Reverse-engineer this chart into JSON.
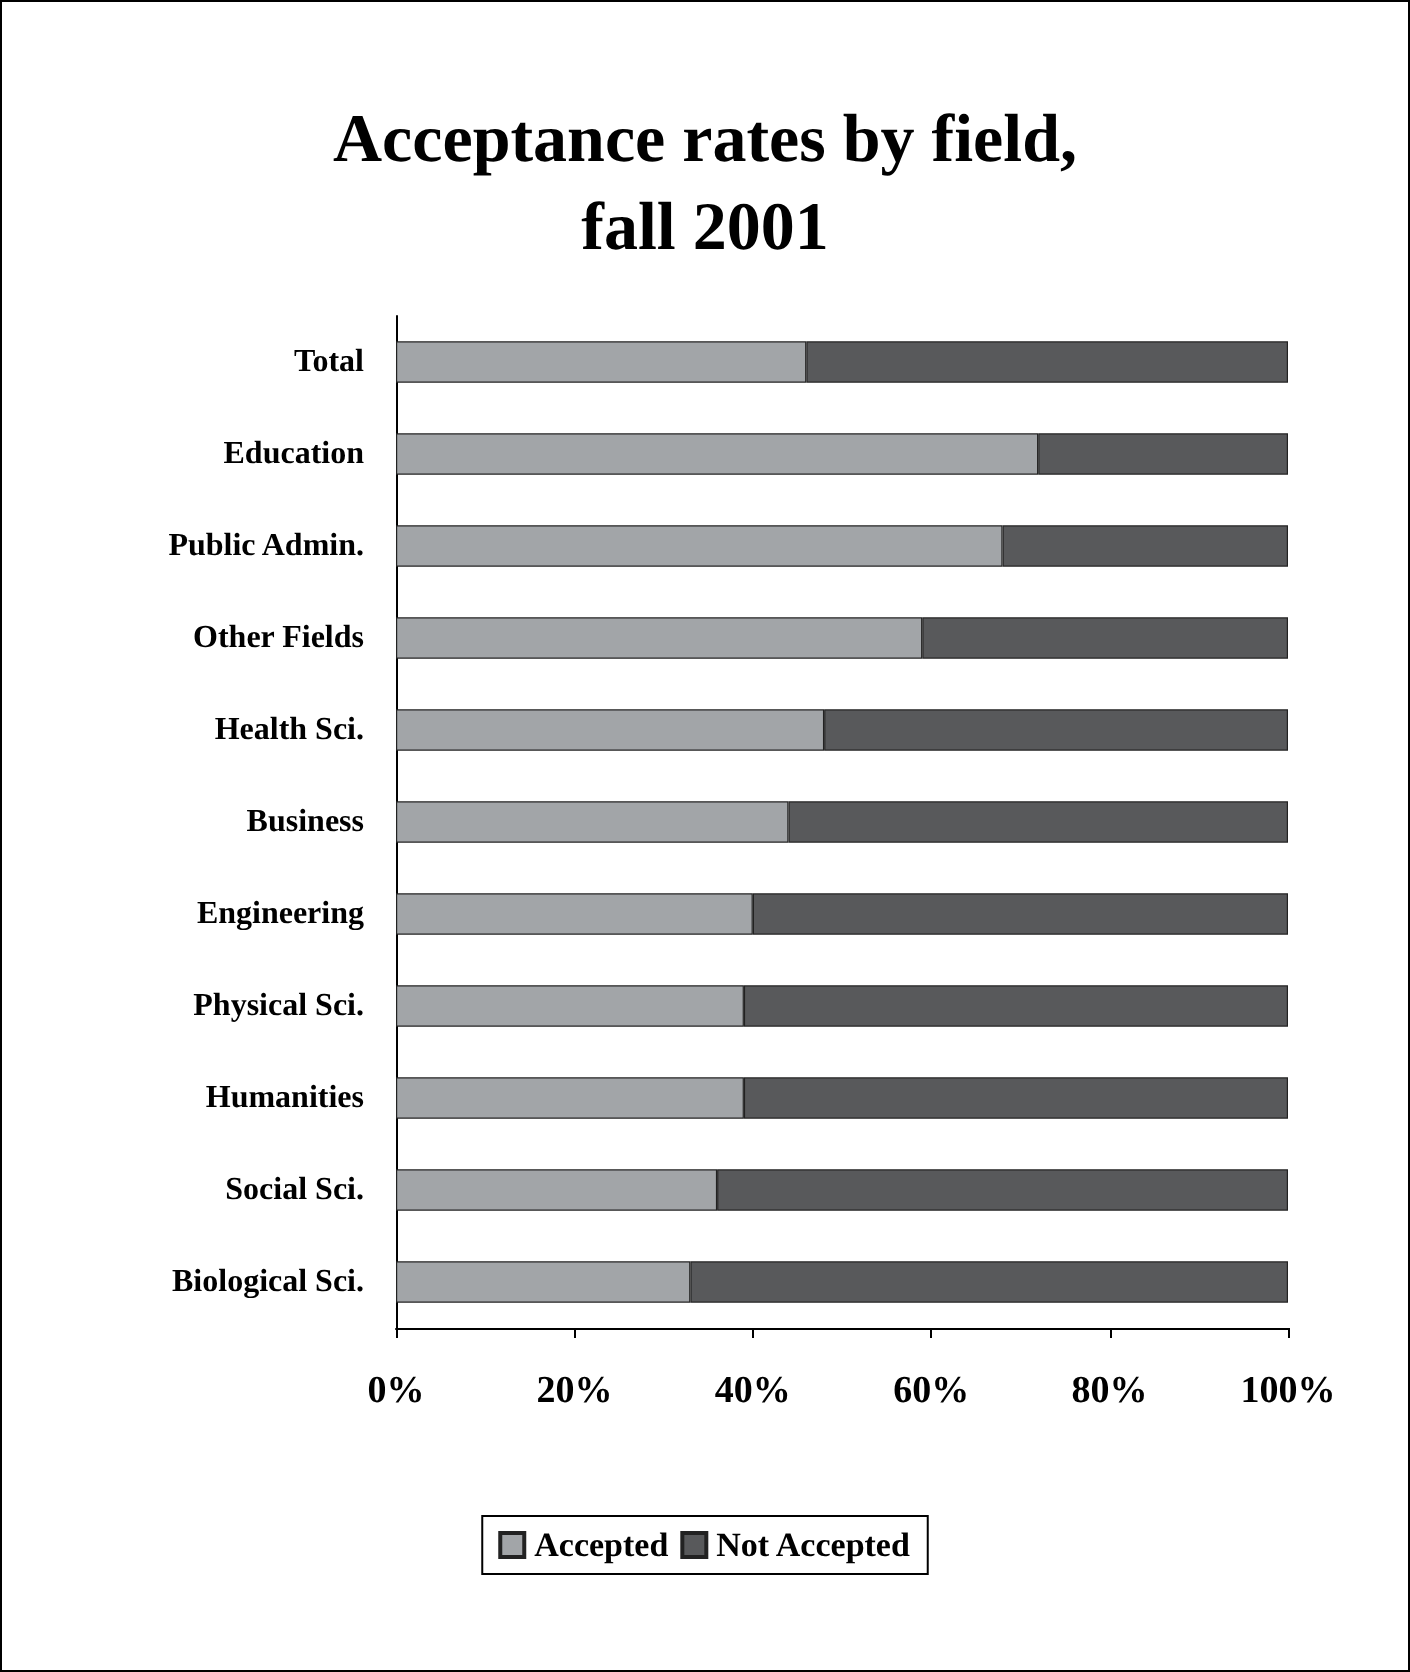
{
  "chart_data": {
    "type": "bar",
    "title": "Acceptance rates by field,\nfall 2001",
    "orientation": "horizontal",
    "stacked": true,
    "categories": [
      "Total",
      "Education",
      "Public Admin.",
      "Other Fields",
      "Health Sci.",
      "Business",
      "Engineering",
      "Physical Sci.",
      "Humanities",
      "Social Sci.",
      "Biological Sci."
    ],
    "series": [
      {
        "name": "Accepted",
        "color": "#a2a5a8",
        "values": [
          46,
          72,
          68,
          59,
          48,
          44,
          40,
          39,
          39,
          36,
          33
        ]
      },
      {
        "name": "Not Accepted",
        "color": "#58595b",
        "values": [
          54,
          28,
          32,
          41,
          52,
          56,
          60,
          61,
          61,
          64,
          67
        ]
      }
    ],
    "xlim": [
      0,
      100
    ],
    "xticks": [
      {
        "value": 0,
        "label": "0%"
      },
      {
        "value": 20,
        "label": "20%"
      },
      {
        "value": 40,
        "label": "40%"
      },
      {
        "value": 60,
        "label": "60%"
      },
      {
        "value": 80,
        "label": "80%"
      },
      {
        "value": 100,
        "label": "100%"
      }
    ],
    "grid": false,
    "legend": "bottom"
  }
}
